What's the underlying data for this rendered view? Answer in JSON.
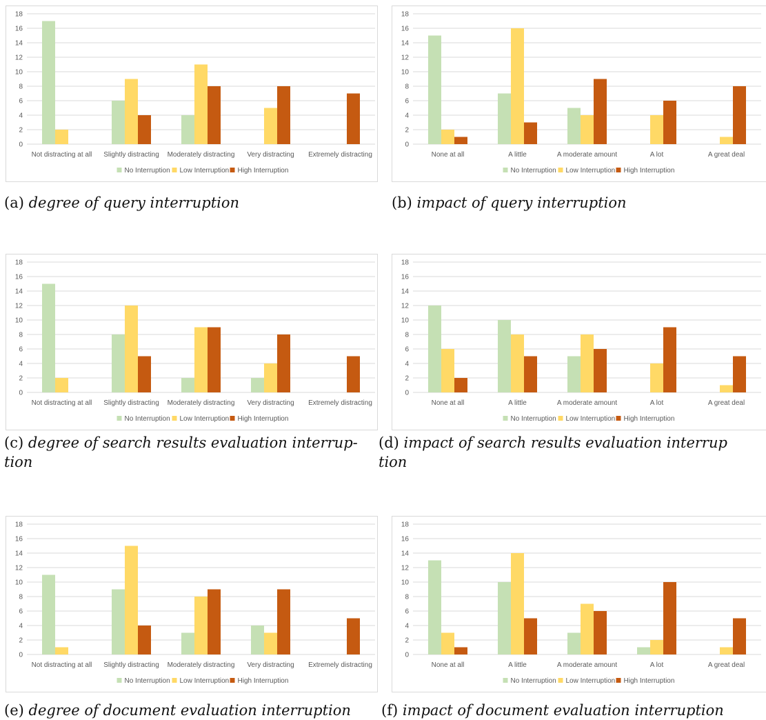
{
  "colors": {
    "no": "#c5e0b4",
    "low": "#ffd966",
    "high": "#c55a11",
    "grid": "#d9d9d9",
    "text": "#595959"
  },
  "legend": [
    "No Interruption",
    "Low Interruption",
    "High Interruption"
  ],
  "chart_data": [
    {
      "type": "bar",
      "id": "a",
      "caption_label": "(a)",
      "caption_text": "degree of query interruption",
      "categories": [
        "Not distracting at all",
        "Slightly distracting",
        "Moderately distracting",
        "Very distracting",
        "Extremely distracting"
      ],
      "ylim": [
        0,
        18
      ],
      "yticks": [
        0,
        2,
        4,
        6,
        8,
        10,
        12,
        14,
        16,
        18
      ],
      "grid": true,
      "legend_position": "bottom",
      "series": [
        {
          "name": "No Interruption",
          "values": [
            17,
            6,
            4,
            0,
            0
          ]
        },
        {
          "name": "Low Interruption",
          "values": [
            2,
            9,
            11,
            5,
            0
          ]
        },
        {
          "name": "High Interruption",
          "values": [
            0,
            4,
            8,
            8,
            7
          ]
        }
      ]
    },
    {
      "type": "bar",
      "id": "b",
      "caption_label": "(b)",
      "caption_text": "impact of query interruption",
      "categories": [
        "None at all",
        "A little",
        "A moderate amount",
        "A lot",
        "A great deal"
      ],
      "ylim": [
        0,
        18
      ],
      "yticks": [
        0,
        2,
        4,
        6,
        8,
        10,
        12,
        14,
        16,
        18
      ],
      "grid": true,
      "legend_position": "bottom",
      "series": [
        {
          "name": "No Interruption",
          "values": [
            15,
            7,
            5,
            0,
            0
          ]
        },
        {
          "name": "Low Interruption",
          "values": [
            2,
            16,
            4,
            4,
            1
          ]
        },
        {
          "name": "High Interruption",
          "values": [
            1,
            3,
            9,
            6,
            8
          ]
        }
      ]
    },
    {
      "type": "bar",
      "id": "c",
      "caption_label": "(c)",
      "caption_text": "degree of search results evaluation interrup-",
      "caption_text2": "tion",
      "categories": [
        "Not distracting at all",
        "Slightly distracting",
        "Moderately distracting",
        "Very distracting",
        "Extremely distracting"
      ],
      "ylim": [
        0,
        18
      ],
      "yticks": [
        0,
        2,
        4,
        6,
        8,
        10,
        12,
        14,
        16,
        18
      ],
      "grid": true,
      "legend_position": "bottom",
      "series": [
        {
          "name": "No Interruption",
          "values": [
            15,
            8,
            2,
            2,
            0
          ]
        },
        {
          "name": "Low Interruption",
          "values": [
            2,
            12,
            9,
            4,
            0
          ]
        },
        {
          "name": "High Interruption",
          "values": [
            0,
            5,
            9,
            8,
            5
          ]
        }
      ]
    },
    {
      "type": "bar",
      "id": "d",
      "caption_label": "(d)",
      "caption_text": "impact of search results evaluation interrup",
      "caption_text2": "tion",
      "categories": [
        "None at all",
        "A little",
        "A moderate amount",
        "A lot",
        "A great deal"
      ],
      "ylim": [
        0,
        18
      ],
      "yticks": [
        0,
        2,
        4,
        6,
        8,
        10,
        12,
        14,
        16,
        18
      ],
      "grid": true,
      "legend_position": "bottom",
      "series": [
        {
          "name": "No Interruption",
          "values": [
            12,
            10,
            5,
            0,
            0
          ]
        },
        {
          "name": "Low Interruption",
          "values": [
            6,
            8,
            8,
            4,
            1
          ]
        },
        {
          "name": "High Interruption",
          "values": [
            2,
            5,
            6,
            9,
            5
          ]
        }
      ]
    },
    {
      "type": "bar",
      "id": "e",
      "caption_label": "(e)",
      "caption_text": "degree of document evaluation interruption",
      "categories": [
        "Not distracting at all",
        "Slightly distracting",
        "Moderately distracting",
        "Very distracting",
        "Extremely distracting"
      ],
      "ylim": [
        0,
        18
      ],
      "yticks": [
        0,
        2,
        4,
        6,
        8,
        10,
        12,
        14,
        16,
        18
      ],
      "grid": true,
      "legend_position": "bottom",
      "series": [
        {
          "name": "No Interruption",
          "values": [
            11,
            9,
            3,
            4,
            0
          ]
        },
        {
          "name": "Low Interruption",
          "values": [
            1,
            15,
            8,
            3,
            0
          ]
        },
        {
          "name": "High Interruption",
          "values": [
            0,
            4,
            9,
            9,
            5
          ]
        }
      ]
    },
    {
      "type": "bar",
      "id": "f",
      "caption_label": "(f)",
      "caption_text": "impact of document evaluation interruption",
      "categories": [
        "None at all",
        "A little",
        "A moderate amount",
        "A lot",
        "A great deal"
      ],
      "ylim": [
        0,
        18
      ],
      "yticks": [
        0,
        2,
        4,
        6,
        8,
        10,
        12,
        14,
        16,
        18
      ],
      "grid": true,
      "legend_position": "bottom",
      "series": [
        {
          "name": "No Interruption",
          "values": [
            13,
            10,
            3,
            1,
            0
          ]
        },
        {
          "name": "Low Interruption",
          "values": [
            3,
            14,
            7,
            2,
            1
          ]
        },
        {
          "name": "High Interruption",
          "values": [
            1,
            5,
            6,
            10,
            5
          ]
        }
      ]
    }
  ]
}
